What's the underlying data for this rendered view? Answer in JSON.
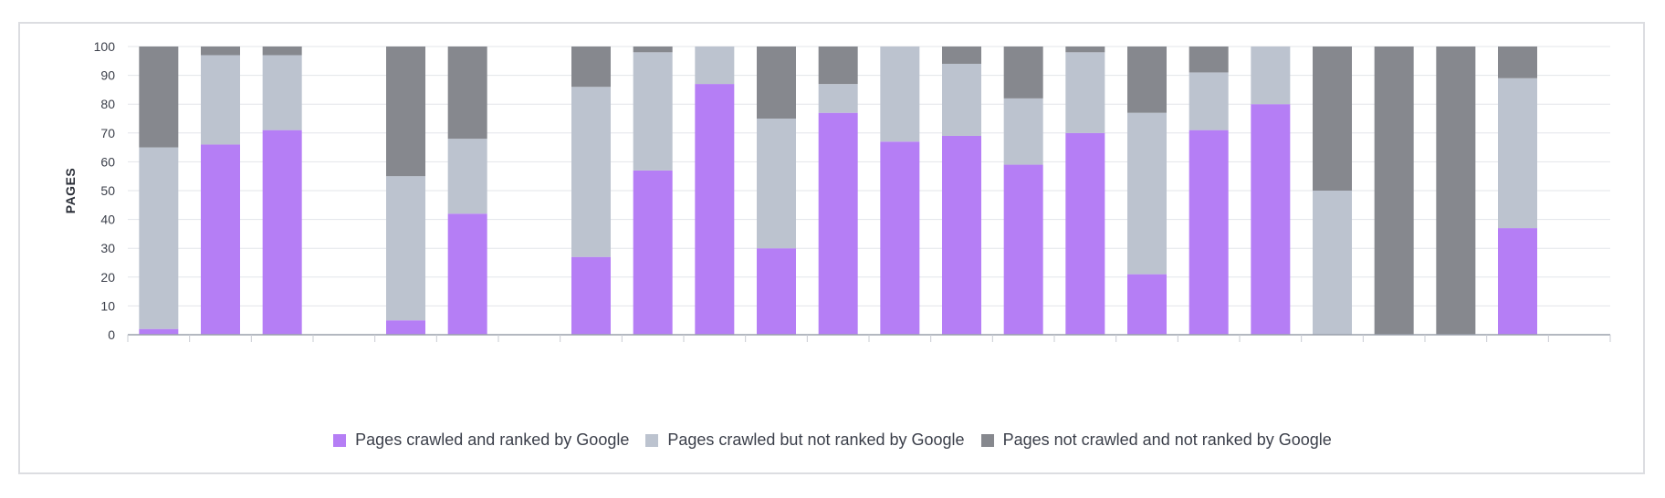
{
  "chart_data": {
    "type": "bar",
    "stacked": true,
    "ylabel": "PAGES",
    "ylim": [
      0,
      100
    ],
    "yticks": [
      0,
      10,
      20,
      30,
      40,
      50,
      60,
      70,
      80,
      90,
      100
    ],
    "grid": true,
    "legend_position": "bottom",
    "categories": [
      "",
      "",
      "",
      "",
      "",
      "",
      "",
      "",
      "",
      "",
      "",
      "",
      "",
      "",
      "",
      "",
      "",
      "",
      "",
      "",
      "",
      "",
      "",
      ""
    ],
    "series": [
      {
        "name": "Pages crawled and ranked by Google",
        "color": "#b57ef5",
        "values": [
          2,
          66,
          71,
          0,
          5,
          42,
          0,
          27,
          57,
          87,
          30,
          77,
          67,
          69,
          59,
          70,
          21,
          71,
          80,
          0,
          0,
          0,
          37,
          0
        ]
      },
      {
        "name": "Pages crawled but not ranked by Google",
        "color": "#bcc3cf",
        "values": [
          63,
          31,
          26,
          0,
          50,
          26,
          0,
          59,
          41,
          13,
          45,
          10,
          33,
          25,
          23,
          28,
          56,
          20,
          20,
          50,
          0,
          0,
          52,
          0
        ]
      },
      {
        "name": "Pages not crawled and not ranked by Google",
        "color": "#86888e",
        "values": [
          35,
          3,
          3,
          0,
          45,
          32,
          0,
          14,
          2,
          0,
          25,
          13,
          0,
          6,
          18,
          2,
          23,
          9,
          0,
          50,
          100,
          100,
          11,
          0
        ]
      }
    ]
  }
}
